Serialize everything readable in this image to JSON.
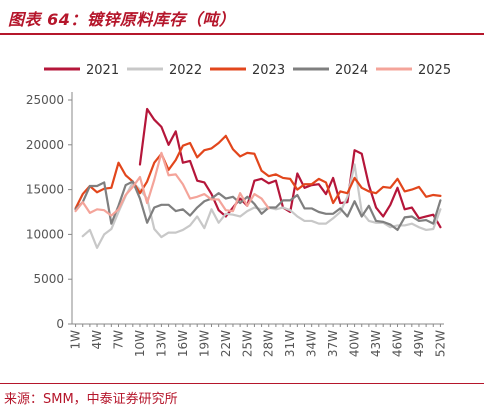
{
  "header": {
    "title": "图表 64：镀锌原料库存（吨）"
  },
  "footer": {
    "source": "来源：SMM，中泰证券研究所"
  },
  "colors": {
    "2021": "#b5163a",
    "2022": "#c8c8c8",
    "2023": "#e2461c",
    "2024": "#7f7f7f",
    "2025": "#f4a49a"
  },
  "chart_data": {
    "type": "line",
    "title": "镀锌原料库存（吨）",
    "xlabel": "",
    "ylabel": "",
    "ylim": [
      0,
      25000
    ],
    "yticks": [
      0,
      5000,
      10000,
      15000,
      20000,
      25000
    ],
    "x": [
      "1W",
      "2W",
      "3W",
      "4W",
      "5W",
      "6W",
      "7W",
      "8W",
      "9W",
      "10W",
      "11W",
      "12W",
      "13W",
      "14W",
      "15W",
      "16W",
      "17W",
      "18W",
      "19W",
      "20W",
      "21W",
      "22W",
      "23W",
      "24W",
      "25W",
      "26W",
      "27W",
      "28W",
      "29W",
      "30W",
      "31W",
      "32W",
      "33W",
      "34W",
      "35W",
      "36W",
      "37W",
      "38W",
      "39W",
      "40W",
      "41W",
      "42W",
      "43W",
      "44W",
      "45W",
      "46W",
      "47W",
      "48W",
      "49W",
      "50W",
      "51W",
      "52W"
    ],
    "xtick_labels": [
      "1W",
      "4W",
      "7W",
      "10W",
      "13W",
      "16W",
      "19W",
      "22W",
      "25W",
      "28W",
      "31W",
      "34W",
      "37W",
      "40W",
      "43W",
      "46W",
      "49W",
      "52W"
    ],
    "grid": false,
    "legend_position": "top",
    "series": [
      {
        "name": "2021",
        "values": [
          null,
          null,
          null,
          null,
          null,
          null,
          null,
          null,
          null,
          17800,
          24000,
          22800,
          22000,
          20000,
          21500,
          18000,
          18200,
          16000,
          15800,
          14500,
          12700,
          12000,
          13000,
          14000,
          13200,
          16000,
          16200,
          15700,
          16000,
          13000,
          12500,
          16800,
          15200,
          15500,
          15600,
          14500,
          16300,
          13500,
          13600,
          19400,
          19000,
          15500,
          13000,
          12000,
          13300,
          15200,
          12800,
          13000,
          11800,
          12000,
          12200,
          10800
        ]
      },
      {
        "name": "2022",
        "values": [
          null,
          9800,
          10500,
          8500,
          10000,
          10600,
          12500,
          14300,
          15800,
          15000,
          14000,
          10600,
          9700,
          10200,
          10200,
          10500,
          11000,
          12000,
          10700,
          12800,
          11300,
          12300,
          12200,
          12000,
          12600,
          13000,
          12800,
          13000,
          12800,
          13000,
          12700,
          12000,
          11500,
          11500,
          11200,
          11200,
          11800,
          12500,
          14200,
          17800,
          12500,
          11500,
          11300,
          11300,
          10800,
          11000,
          11000,
          11200,
          10800,
          10500,
          10600,
          12800
        ]
      },
      {
        "name": "2023",
        "values": [
          12900,
          14500,
          15400,
          14700,
          15100,
          15200,
          18000,
          16600,
          15900,
          14600,
          15900,
          18000,
          19000,
          17200,
          18300,
          19900,
          20200,
          18600,
          19400,
          19600,
          20200,
          21000,
          19500,
          18700,
          19100,
          19000,
          17100,
          16500,
          16700,
          16300,
          16200,
          15000,
          15600,
          15600,
          16200,
          15800,
          13500,
          14800,
          14600,
          16300,
          15200,
          14800,
          14600,
          15300,
          15200,
          16200,
          14800,
          15000,
          15300,
          14200,
          14400,
          14300
        ]
      },
      {
        "name": "2024",
        "values": [
          12800,
          13600,
          15400,
          15400,
          15800,
          11200,
          13200,
          15500,
          15900,
          14000,
          11300,
          13000,
          13300,
          13300,
          12600,
          12800,
          12100,
          13000,
          13700,
          14000,
          14600,
          14000,
          14200,
          13500,
          14200,
          13400,
          12300,
          13000,
          13000,
          13800,
          13800,
          14400,
          12900,
          12900,
          12500,
          12300,
          12300,
          12900,
          12000,
          13700,
          12000,
          13200,
          11500,
          11400,
          11100,
          10500,
          11900,
          12000,
          11500,
          11600,
          11200,
          13800
        ]
      },
      {
        "name": "2025",
        "values": [
          12600,
          13600,
          12400,
          12800,
          12700,
          12100,
          12800,
          14400,
          15300,
          16400,
          13500,
          16100,
          19100,
          16600,
          16700,
          15600,
          14000,
          14200,
          14500,
          13900,
          13900,
          12700,
          12600,
          14600,
          13200,
          14500,
          14000,
          12900,
          null,
          null,
          null,
          null,
          null,
          null,
          null,
          null,
          null,
          null,
          null,
          null,
          null,
          null,
          null,
          null,
          null,
          null,
          null,
          null,
          null,
          null,
          null,
          null
        ]
      }
    ]
  }
}
